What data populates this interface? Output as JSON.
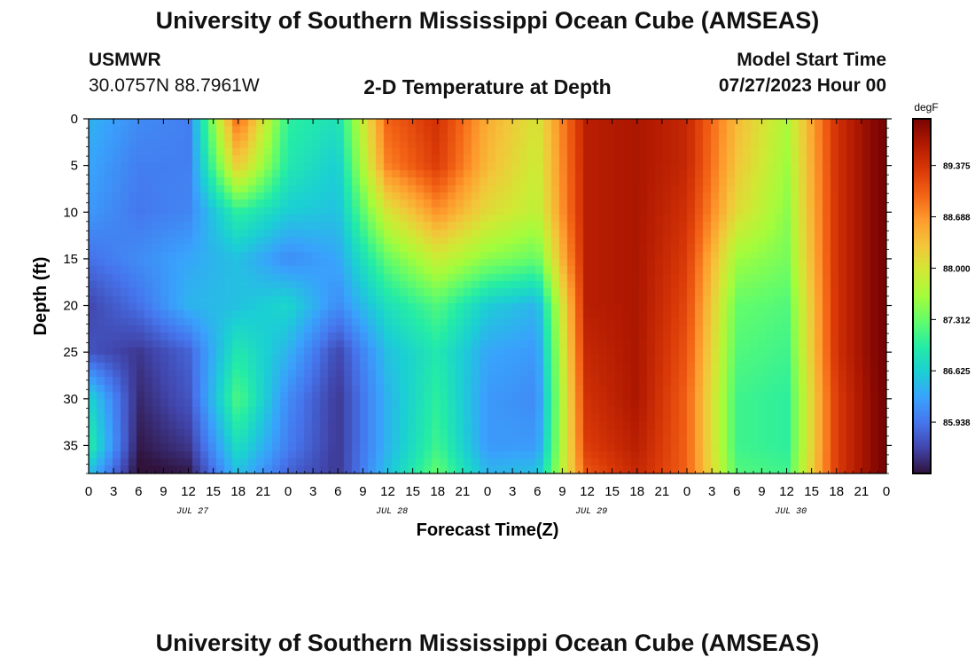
{
  "header": {
    "title": "University of Southern Mississippi Ocean Cube (AMSEAS)",
    "station": "USMWR",
    "coords": "30.0757N  88.7961W",
    "subtitle": "2-D Temperature at Depth",
    "start_label": "Model Start Time",
    "start_value": "07/27/2023 Hour 00"
  },
  "footer": {
    "title": "University of Southern Mississippi Ocean Cube (AMSEAS)"
  },
  "chart_data": {
    "type": "heatmap",
    "xlabel": "Forecast Time(Z)",
    "ylabel": "Depth (ft)",
    "ylim": [
      0,
      38
    ],
    "y_inverted": true,
    "y_ticks": [
      0,
      5,
      10,
      15,
      20,
      25,
      30,
      35
    ],
    "x_hours_range": [
      0,
      96
    ],
    "x_tick_labels": [
      "0",
      "3",
      "6",
      "9",
      "12",
      "15",
      "18",
      "21",
      "0",
      "3",
      "6",
      "9",
      "12",
      "15",
      "18",
      "21",
      "0",
      "3",
      "6",
      "9",
      "12",
      "15",
      "18",
      "21",
      "0",
      "3",
      "6",
      "9",
      "12",
      "15",
      "18",
      "21",
      "0"
    ],
    "date_labels": [
      {
        "label": "JUL 27",
        "hour": 12.5
      },
      {
        "label": "JUL 28",
        "hour": 36.5
      },
      {
        "label": "JUL 29",
        "hour": 60.5
      },
      {
        "label": "JUL 30",
        "hour": 84.5
      }
    ],
    "colorbar": {
      "unit": "degF",
      "range": [
        85.25,
        90.0
      ],
      "ticks": [
        "89.375",
        "88.688",
        "88.000",
        "87.312",
        "86.625",
        "85.938"
      ]
    },
    "colormap": [
      "#30123b",
      "#4145ab",
      "#4675ed",
      "#39a2fc",
      "#1bcfd4",
      "#24eca6",
      "#61fc6c",
      "#a4fc3b",
      "#d1e834",
      "#f3c63a",
      "#fe9b2d",
      "#f36315",
      "#d93807",
      "#b11901",
      "#7a0403"
    ],
    "grid": {
      "hours": [
        0,
        6,
        12,
        18,
        24,
        30,
        36,
        42,
        48,
        54,
        60,
        66,
        72,
        78,
        84,
        90,
        96
      ],
      "depths": [
        0,
        5,
        10,
        15,
        20,
        25,
        30,
        35,
        38
      ],
      "values": [
        [
          86.4,
          86.1,
          86.0,
          89.0,
          87.0,
          86.8,
          89.0,
          89.4,
          88.5,
          88.0,
          89.6,
          89.7,
          89.5,
          88.4,
          87.7,
          89.4,
          90.1
        ],
        [
          86.3,
          86.0,
          86.0,
          88.3,
          86.9,
          86.6,
          88.8,
          89.3,
          88.4,
          87.9,
          89.6,
          89.7,
          89.5,
          88.3,
          87.6,
          89.4,
          90.1
        ],
        [
          86.2,
          85.95,
          86.05,
          87.0,
          86.6,
          86.5,
          88.0,
          88.7,
          88.1,
          87.8,
          89.6,
          89.7,
          89.4,
          88.1,
          87.5,
          89.4,
          90.1
        ],
        [
          85.9,
          86.1,
          86.3,
          86.5,
          86.1,
          86.3,
          87.3,
          87.9,
          87.5,
          87.3,
          89.6,
          89.7,
          89.3,
          87.6,
          87.4,
          89.4,
          90.1
        ],
        [
          85.6,
          85.9,
          86.4,
          86.5,
          86.7,
          86.1,
          86.8,
          87.2,
          86.6,
          86.4,
          89.6,
          89.7,
          89.2,
          87.3,
          87.2,
          89.4,
          90.1
        ],
        [
          85.7,
          85.5,
          85.8,
          86.9,
          86.4,
          85.6,
          86.5,
          86.9,
          86.3,
          86.2,
          89.5,
          89.7,
          89.1,
          87.2,
          87.1,
          89.4,
          90.1
        ],
        [
          86.7,
          85.4,
          85.7,
          87.2,
          86.1,
          85.5,
          86.4,
          87.0,
          86.2,
          86.1,
          89.4,
          89.7,
          89.0,
          87.1,
          87.0,
          89.3,
          90.1
        ],
        [
          87.0,
          85.3,
          85.5,
          86.8,
          86.0,
          85.5,
          86.4,
          87.1,
          86.2,
          86.2,
          89.3,
          89.6,
          89.0,
          87.1,
          87.0,
          89.3,
          90.1
        ],
        [
          86.5,
          85.2,
          85.3,
          86.5,
          85.8,
          85.5,
          86.5,
          87.3,
          86.4,
          86.5,
          89.1,
          89.5,
          89.0,
          87.2,
          87.1,
          89.3,
          90.1
        ]
      ]
    }
  }
}
